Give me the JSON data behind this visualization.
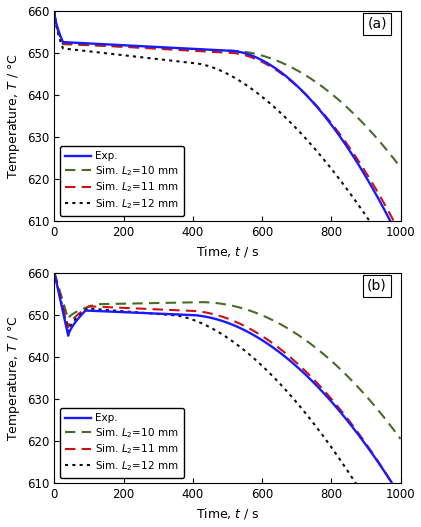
{
  "xlim": [
    0,
    1000
  ],
  "ylim": [
    610,
    660
  ],
  "yticks": [
    610,
    620,
    630,
    640,
    650,
    660
  ],
  "xticks": [
    0,
    200,
    400,
    600,
    800,
    1000
  ],
  "xlabel": "Time, $t$ / s",
  "ylabel": "Temperature, $T$ / °C",
  "panel_a_label": "(a)",
  "panel_b_label": "(b)",
  "legend_entries": [
    "Exp.",
    "Sim. $L_2$=10 mm",
    "Sim. $L_2$=11 mm",
    "Sim. $L_2$=12 mm"
  ],
  "colors": {
    "exp": "#1a1aff",
    "sim10": "#4a6b28",
    "sim11": "#cc1111",
    "sim12": "#111111"
  },
  "lw": {
    "exp": 1.7,
    "sim10": 1.5,
    "sim11": 1.5,
    "sim12": 1.5
  }
}
